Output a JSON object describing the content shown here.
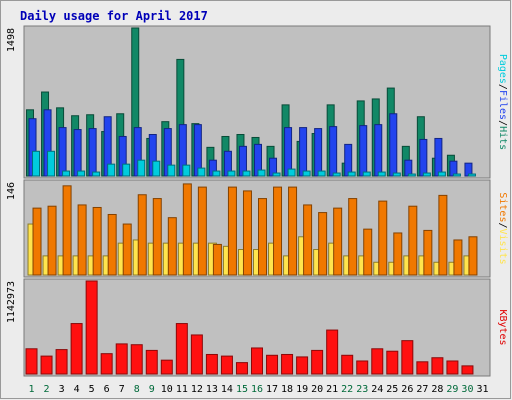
{
  "chart_data": {
    "type": "bar",
    "title": "Daily usage for April 2017",
    "categories": [
      "1",
      "2",
      "3",
      "4",
      "5",
      "6",
      "7",
      "8",
      "9",
      "10",
      "11",
      "12",
      "13",
      "14",
      "15",
      "16",
      "17",
      "18",
      "19",
      "20",
      "21",
      "22",
      "23",
      "24",
      "25",
      "26",
      "27",
      "28",
      "29",
      "30",
      "31"
    ],
    "weekend_days": [
      1,
      2,
      8,
      9,
      15,
      16,
      22,
      23,
      29,
      30
    ],
    "panels": [
      {
        "id": "top",
        "max_label": "1498",
        "ymax": 1498,
        "side_labels": [
          {
            "text": "Pages",
            "color": "#00ccdd"
          },
          {
            "text": "Files",
            "color": "#2244ee"
          },
          {
            "text": "Hits",
            "color": "#118866"
          }
        ],
        "series": [
          {
            "name": "Hits",
            "color": "#118866",
            "values": [
              670,
              850,
              690,
              610,
              620,
              450,
              630,
              1498,
              380,
              550,
              1180,
              530,
              290,
              400,
              420,
              390,
              300,
              720,
              350,
              430,
              720,
              130,
              760,
              780,
              890,
              300,
              600,
              180,
              210,
              0,
              0
            ]
          },
          {
            "name": "Files",
            "color": "#2244ee",
            "values": [
              580,
              670,
              490,
              470,
              480,
              600,
              400,
              490,
              420,
              480,
              520,
              520,
              160,
              250,
              300,
              320,
              180,
              490,
              490,
              480,
              500,
              320,
              510,
              520,
              630,
              160,
              370,
              380,
              150,
              130,
              0
            ]
          },
          {
            "name": "Pages",
            "color": "#00ccdd",
            "values": [
              250,
              250,
              50,
              50,
              40,
              120,
              120,
              160,
              150,
              110,
              110,
              80,
              50,
              50,
              50,
              60,
              30,
              70,
              50,
              50,
              30,
              40,
              40,
              40,
              30,
              20,
              30,
              40,
              20,
              20,
              0
            ]
          }
        ]
      },
      {
        "id": "middle",
        "max_label": "146",
        "ymax": 146,
        "side_labels": [
          {
            "text": "Sites",
            "color": "#f07800"
          },
          {
            "text": "Visits",
            "color": "#ffe44d"
          }
        ],
        "series": [
          {
            "name": "Visits",
            "color": "#ffe44d",
            "values": [
              80,
              30,
              30,
              30,
              30,
              30,
              50,
              55,
              50,
              50,
              50,
              50,
              50,
              45,
              40,
              40,
              50,
              30,
              60,
              40,
              50,
              30,
              30,
              20,
              20,
              30,
              30,
              20,
              20,
              30,
              0
            ]
          },
          {
            "name": "Sites",
            "color": "#f07800",
            "values": [
              105,
              108,
              140,
              110,
              106,
              95,
              80,
              126,
              120,
              90,
              143,
              138,
              48,
              138,
              132,
              120,
              138,
              138,
              110,
              98,
              105,
              120,
              72,
              116,
              66,
              108,
              70,
              125,
              55,
              60,
              0
            ]
          }
        ]
      },
      {
        "id": "bottom",
        "max_label": "1142973",
        "ymax": 1142973,
        "side_labels": [
          {
            "text": "KBytes",
            "color": "#e00000"
          }
        ],
        "series": [
          {
            "name": "KBytes",
            "color": "#ff1010",
            "values": [
              310000,
              220000,
              300000,
              620000,
              1142973,
              250000,
              370000,
              360000,
              290000,
              170000,
              620000,
              480000,
              240000,
              220000,
              140000,
              320000,
              230000,
              240000,
              210000,
              290000,
              540000,
              230000,
              160000,
              310000,
              280000,
              410000,
              150000,
              200000,
              160000,
              100000,
              0
            ]
          }
        ]
      }
    ]
  }
}
